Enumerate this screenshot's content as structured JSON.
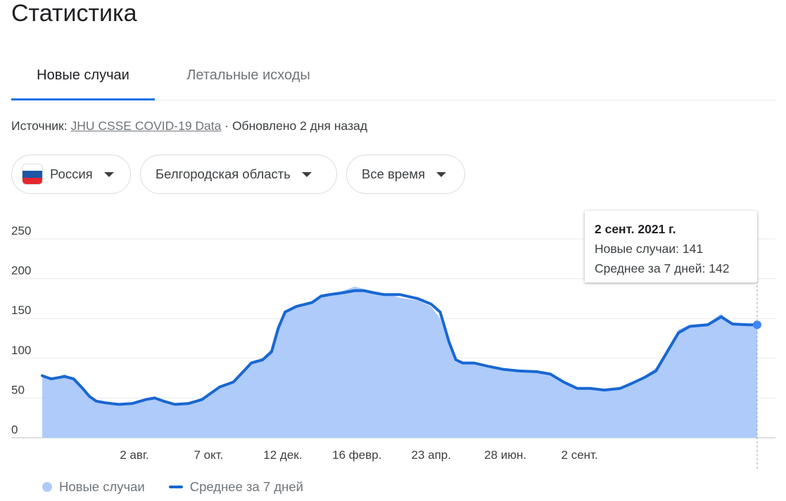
{
  "page": {
    "title": "Статистика"
  },
  "tabs": [
    {
      "label": "Новые случаи",
      "active": true
    },
    {
      "label": "Летальные исходы",
      "active": false
    }
  ],
  "source": {
    "prefix": "Источник: ",
    "link": "JHU CSSE COVID-19 Data",
    "updated": " · Обновлено 2 дня назад"
  },
  "filters": {
    "country": "Россия",
    "region": "Белгородская область",
    "period": "Все время"
  },
  "tooltip": {
    "date": "2 сент. 2021 г.",
    "new_cases": "Новые случаи: 141",
    "avg7": "Среднее за 7 дней: 142"
  },
  "legend": {
    "bars": "Новые случаи",
    "line": "Среднее за 7 дней"
  },
  "colors": {
    "bars": "#aecbfa",
    "line": "#1967d2",
    "accent": "#1a73e8",
    "marker": "#4285f4"
  },
  "chart_data": {
    "type": "area",
    "title": "",
    "xlabel": "",
    "ylabel": "",
    "ylim": [
      0,
      250
    ],
    "y_ticks": [
      0,
      50,
      100,
      150,
      200,
      250
    ],
    "x_tick_labels": [
      {
        "label": "2 авг.",
        "day": 82
      },
      {
        "label": "7 окт.",
        "day": 148
      },
      {
        "label": "12 дек.",
        "day": 214
      },
      {
        "label": "16 февр.",
        "day": 280
      },
      {
        "label": "23 апр.",
        "day": 346
      },
      {
        "label": "28 июн.",
        "day": 412
      },
      {
        "label": "2 сент.",
        "day": 478
      }
    ],
    "series": [
      {
        "name": "Среднее за 7 дней",
        "points": [
          [
            0,
            78
          ],
          [
            8,
            74
          ],
          [
            20,
            77
          ],
          [
            28,
            74
          ],
          [
            36,
            62
          ],
          [
            42,
            52
          ],
          [
            48,
            46
          ],
          [
            56,
            44
          ],
          [
            68,
            42
          ],
          [
            80,
            43
          ],
          [
            92,
            48
          ],
          [
            100,
            50
          ],
          [
            108,
            46
          ],
          [
            118,
            42
          ],
          [
            130,
            43
          ],
          [
            142,
            48
          ],
          [
            150,
            56
          ],
          [
            158,
            64
          ],
          [
            170,
            70
          ],
          [
            178,
            82
          ],
          [
            186,
            94
          ],
          [
            196,
            98
          ],
          [
            204,
            108
          ],
          [
            210,
            138
          ],
          [
            216,
            158
          ],
          [
            226,
            165
          ],
          [
            240,
            170
          ],
          [
            248,
            178
          ],
          [
            256,
            180
          ],
          [
            266,
            182
          ],
          [
            278,
            185
          ],
          [
            286,
            185
          ],
          [
            296,
            182
          ],
          [
            304,
            180
          ],
          [
            318,
            180
          ],
          [
            334,
            175
          ],
          [
            346,
            168
          ],
          [
            354,
            158
          ],
          [
            362,
            120
          ],
          [
            368,
            98
          ],
          [
            374,
            94
          ],
          [
            384,
            94
          ],
          [
            396,
            90
          ],
          [
            410,
            86
          ],
          [
            424,
            84
          ],
          [
            440,
            83
          ],
          [
            452,
            80
          ],
          [
            464,
            70
          ],
          [
            476,
            62
          ],
          [
            488,
            62
          ],
          [
            500,
            60
          ],
          [
            514,
            62
          ],
          [
            524,
            68
          ],
          [
            536,
            76
          ],
          [
            546,
            84
          ],
          [
            556,
            108
          ],
          [
            566,
            132
          ],
          [
            576,
            140
          ],
          [
            592,
            142
          ],
          [
            604,
            152
          ],
          [
            614,
            143
          ],
          [
            628,
            142
          ],
          [
            636,
            142
          ]
        ]
      },
      {
        "name": "Новые случаи",
        "points": [
          [
            0,
            80
          ],
          [
            8,
            74
          ],
          [
            20,
            80
          ],
          [
            28,
            72
          ],
          [
            36,
            60
          ],
          [
            42,
            50
          ],
          [
            48,
            46
          ],
          [
            56,
            44
          ],
          [
            68,
            40
          ],
          [
            80,
            45
          ],
          [
            92,
            48
          ],
          [
            100,
            52
          ],
          [
            108,
            45
          ],
          [
            118,
            40
          ],
          [
            130,
            44
          ],
          [
            142,
            50
          ],
          [
            150,
            58
          ],
          [
            158,
            66
          ],
          [
            170,
            70
          ],
          [
            178,
            84
          ],
          [
            186,
            96
          ],
          [
            196,
            100
          ],
          [
            204,
            112
          ],
          [
            210,
            142
          ],
          [
            216,
            160
          ],
          [
            226,
            166
          ],
          [
            240,
            172
          ],
          [
            248,
            180
          ],
          [
            256,
            182
          ],
          [
            266,
            184
          ],
          [
            278,
            190
          ],
          [
            286,
            187
          ],
          [
            296,
            180
          ],
          [
            304,
            182
          ],
          [
            318,
            176
          ],
          [
            334,
            173
          ],
          [
            346,
            165
          ],
          [
            354,
            150
          ],
          [
            362,
            115
          ],
          [
            368,
            95
          ],
          [
            374,
            96
          ],
          [
            384,
            92
          ],
          [
            396,
            88
          ],
          [
            410,
            85
          ],
          [
            424,
            85
          ],
          [
            440,
            82
          ],
          [
            452,
            78
          ],
          [
            464,
            68
          ],
          [
            476,
            62
          ],
          [
            488,
            62
          ],
          [
            500,
            60
          ],
          [
            514,
            64
          ],
          [
            524,
            70
          ],
          [
            536,
            78
          ],
          [
            546,
            88
          ],
          [
            556,
            112
          ],
          [
            566,
            136
          ],
          [
            576,
            142
          ],
          [
            592,
            144
          ],
          [
            604,
            156
          ],
          [
            614,
            142
          ],
          [
            628,
            144
          ],
          [
            636,
            141
          ]
        ]
      }
    ],
    "highlight": {
      "label": "2 сент. 2021 г.",
      "new_cases": 141,
      "avg7": 142
    }
  }
}
